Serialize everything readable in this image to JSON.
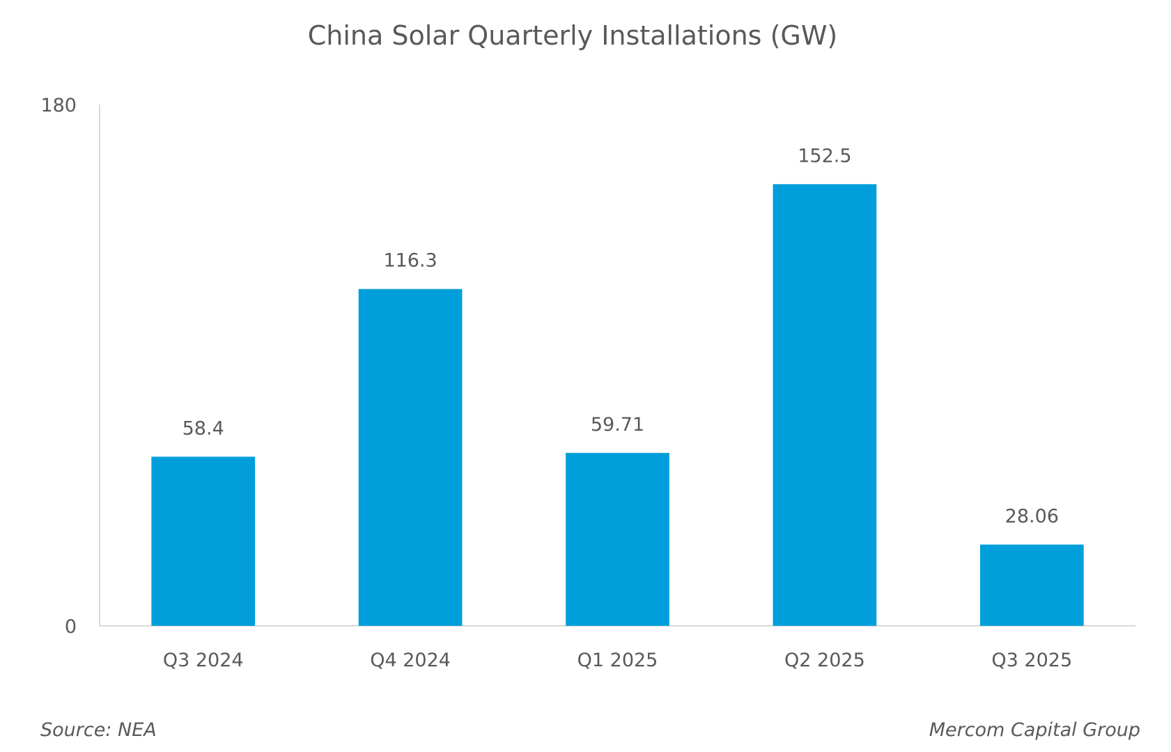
{
  "chart_data": {
    "type": "bar",
    "title": "China Solar Quarterly Installations (GW)",
    "xlabel": "",
    "ylabel": "",
    "categories": [
      "Q3 2024",
      "Q4 2024",
      "Q1 2025",
      "Q2 2025",
      "Q3 2025"
    ],
    "values": [
      58.4,
      116.3,
      59.71,
      152.5,
      28.06
    ],
    "value_labels": [
      "58.4",
      "116.3",
      "59.71",
      "152.5",
      "28.06"
    ],
    "ylim": [
      0,
      180
    ],
    "yticks": [
      "0",
      "180"
    ],
    "grid": false,
    "legend": "none",
    "bar_color": "#009FDB",
    "axis_color": "#D9D9D9",
    "text_color": "#595959"
  },
  "footer": {
    "source": "Source: NEA",
    "credit": "Mercom Capital Group"
  }
}
